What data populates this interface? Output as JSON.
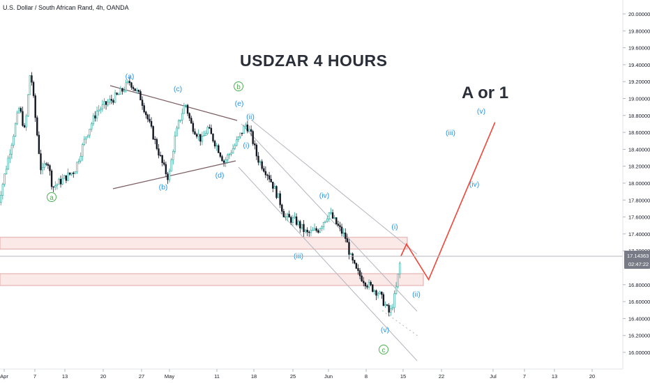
{
  "header": {
    "symbol_title": "U.S. Dollar / South African Rand, 4h, OANDA",
    "main_title": "USDZAR 4 HOURS",
    "target_label": "A or 1"
  },
  "colors": {
    "up": "#26a69a",
    "down": "#131722",
    "wave_blue": "#2196f3",
    "wave_green": "#4caf50",
    "projection": "#f44336",
    "zone_fill": "#fbe9e7",
    "zone_border": "#e0a7a7",
    "channel": "#b2b5be",
    "triangle": "#7b5c60"
  },
  "price_axis": {
    "ticks": [
      "20.00000",
      "19.80000",
      "19.60000",
      "19.40000",
      "19.20000",
      "19.00000",
      "18.80000",
      "18.60000",
      "18.40000",
      "18.20000",
      "18.00000",
      "17.80000",
      "17.60000",
      "17.40000",
      "17.20000",
      "16.80000",
      "16.60000",
      "16.40000",
      "16.20000",
      "16.00000"
    ],
    "current_price": "17.14363",
    "countdown": "02:47:22"
  },
  "time_axis": {
    "ticks": [
      "Apr",
      "7",
      "13",
      "20",
      "27",
      "May",
      "11",
      "18",
      "25",
      "Jun",
      "8",
      "15",
      "22",
      "Jul",
      "7",
      "13",
      "20"
    ]
  },
  "wave_labels": [
    {
      "text": "a",
      "style": "circle-green"
    },
    {
      "text": "(a)",
      "style": "blue"
    },
    {
      "text": "(b)",
      "style": "blue"
    },
    {
      "text": "(c)",
      "style": "blue"
    },
    {
      "text": "(d)",
      "style": "blue"
    },
    {
      "text": "(e)",
      "style": "blue"
    },
    {
      "text": "b",
      "style": "circle-green"
    },
    {
      "text": "(i)",
      "style": "blue"
    },
    {
      "text": "(ii)",
      "style": "blue"
    },
    {
      "text": "(iii)",
      "style": "blue"
    },
    {
      "text": "(iv)",
      "style": "blue"
    },
    {
      "text": "(v)",
      "style": "blue"
    },
    {
      "text": "c",
      "style": "circle-green"
    },
    {
      "text": "(i)",
      "style": "blue"
    },
    {
      "text": "(ii)",
      "style": "blue"
    },
    {
      "text": "(iii)",
      "style": "blue"
    },
    {
      "text": "(iv)",
      "style": "blue"
    },
    {
      "text": "(v)",
      "style": "blue"
    }
  ],
  "chart_data": {
    "type": "candlestick",
    "title": "USDZAR 4 HOURS",
    "instrument": "U.S. Dollar / South African Rand, 4h, OANDA",
    "ylim": [
      15.88,
      20.12
    ],
    "price_path": [
      {
        "x": "Mar 31",
        "y": 17.7
      },
      {
        "x": "Apr 2",
        "y": 18.3
      },
      {
        "x": "Apr 4",
        "y": 18.9
      },
      {
        "x": "Apr 5",
        "y": 18.6
      },
      {
        "x": "Apr 6",
        "y": 19.35
      },
      {
        "x": "Apr 7",
        "y": 18.7
      },
      {
        "x": "Apr 8",
        "y": 18.1
      },
      {
        "x": "Apr 9",
        "y": 18.3
      },
      {
        "x": "Apr 10",
        "y": 17.95
      },
      {
        "x": "Apr 12",
        "y": 18.05
      },
      {
        "x": "Apr 14",
        "y": 18.15
      },
      {
        "x": "Apr 16",
        "y": 18.55
      },
      {
        "x": "Apr 18",
        "y": 18.85
      },
      {
        "x": "Apr 20",
        "y": 18.95
      },
      {
        "x": "Apr 22",
        "y": 19.05
      },
      {
        "x": "Apr 24",
        "y": 19.2
      },
      {
        "x": "Apr 26",
        "y": 19.0
      },
      {
        "x": "Apr 28",
        "y": 18.6
      },
      {
        "x": "Apr 30",
        "y": 18.2
      },
      {
        "x": "May 1",
        "y": 18.05
      },
      {
        "x": "May 2",
        "y": 18.5
      },
      {
        "x": "May 3",
        "y": 18.75
      },
      {
        "x": "May 4",
        "y": 18.95
      },
      {
        "x": "May 5",
        "y": 18.7
      },
      {
        "x": "May 7",
        "y": 18.5
      },
      {
        "x": "May 8",
        "y": 18.65
      },
      {
        "x": "May 10",
        "y": 18.4
      },
      {
        "x": "May 11",
        "y": 18.25
      },
      {
        "x": "May 13",
        "y": 18.45
      },
      {
        "x": "May 15",
        "y": 18.7
      },
      {
        "x": "May 16",
        "y": 18.55
      },
      {
        "x": "May 17",
        "y": 18.3
      },
      {
        "x": "May 19",
        "y": 18.1
      },
      {
        "x": "May 21",
        "y": 17.8
      },
      {
        "x": "May 22",
        "y": 17.6
      },
      {
        "x": "May 24",
        "y": 17.55
      },
      {
        "x": "May 26",
        "y": 17.4
      },
      {
        "x": "May 28",
        "y": 17.45
      },
      {
        "x": "May 30",
        "y": 17.65
      },
      {
        "x": "May 31",
        "y": 17.55
      },
      {
        "x": "Jun 2",
        "y": 17.35
      },
      {
        "x": "Jun 3",
        "y": 17.1
      },
      {
        "x": "Jun 4",
        "y": 16.95
      },
      {
        "x": "Jun 6",
        "y": 16.8
      },
      {
        "x": "Jun 8",
        "y": 16.7
      },
      {
        "x": "Jun 10",
        "y": 16.45
      },
      {
        "x": "Jun 11",
        "y": 16.7
      },
      {
        "x": "Jun 12",
        "y": 17.14
      }
    ],
    "projection": [
      {
        "x": "Jun 12",
        "y": 17.14
      },
      {
        "x": "Jun 13",
        "y": 17.28
      },
      {
        "x": "Jun 17",
        "y": 16.86
      },
      {
        "x": "Jun 29",
        "y": 18.72
      }
    ],
    "zones": [
      {
        "from": 17.22,
        "to": 17.36
      },
      {
        "from": 16.79,
        "to": 16.93
      }
    ],
    "legend": "none",
    "grid": false
  }
}
